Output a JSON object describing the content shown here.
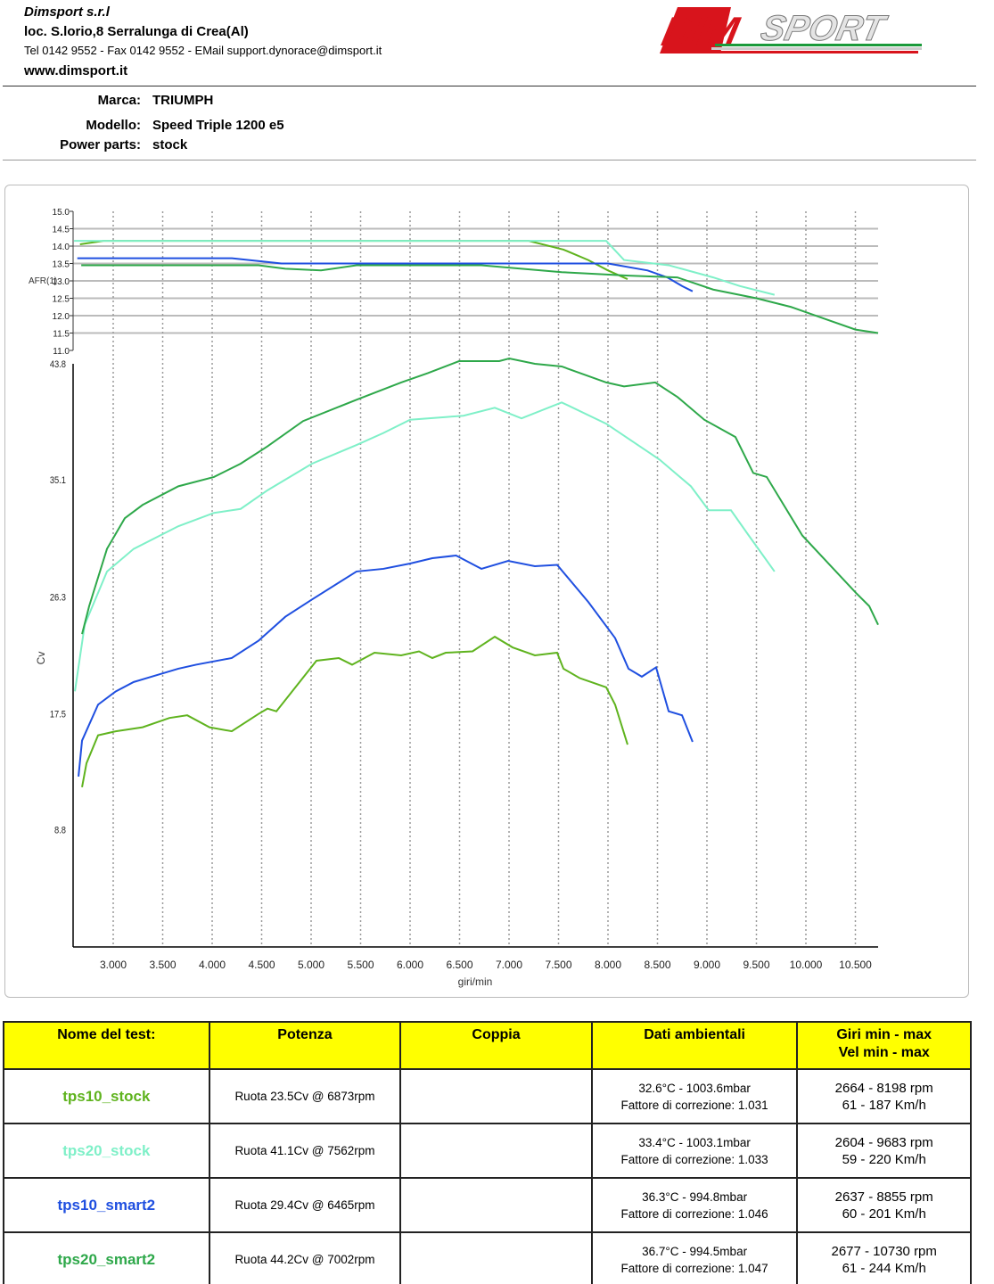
{
  "header": {
    "company": "Dimsport s.r.l",
    "address": "loc. S.lorio,8 Serralunga di Crea(Al)",
    "contacts": "Tel 0142 9552 - Fax 0142 9552 - EMail support.dynorace@dimsport.it",
    "website": "www.dimsport.it",
    "logo_text": "DIMSPORT"
  },
  "vehicle": {
    "brand_label": "Marca:",
    "brand": "TRIUMPH",
    "model_label": "Modello:",
    "model": "Speed Triple 1200 e5",
    "parts_label": "Power parts:",
    "parts": "stock"
  },
  "colors": {
    "tps10_stock": "#5fb31e",
    "tps20_stock": "#7ff0c8",
    "tps10_smart2": "#1f4fe0",
    "tps20_smart2": "#2ea84a"
  },
  "chart_data": {
    "type": "line",
    "xlabel": "giri/min",
    "xlim": [
      2595,
      10730
    ],
    "xticks": [
      3000,
      3500,
      4000,
      4500,
      5000,
      5500,
      6000,
      6500,
      7000,
      7500,
      8000,
      8500,
      9000,
      9500,
      10000,
      10500
    ],
    "xtick_labels": [
      "3.000",
      "3.500",
      "4.000",
      "4.500",
      "5.000",
      "5.500",
      "6.000",
      "6.500",
      "7.000",
      "7.500",
      "8.000",
      "8.500",
      "9.000",
      "9.500",
      "10.000",
      "10.500"
    ],
    "afr_axis": {
      "label": "AFR(1)",
      "ylim": [
        11.0,
        15.0
      ],
      "ticks": [
        "15.0",
        "14.5",
        "14.0",
        "13.5",
        "13.0",
        "12.5",
        "12.0",
        "11.5",
        "11.0"
      ],
      "grid": true
    },
    "power_axis": {
      "label": "Cv",
      "ylim": [
        0,
        43.8
      ],
      "ticks": [
        "43.8",
        "35.1",
        "26.3",
        "17.5",
        "8.8"
      ],
      "tick_values": [
        43.8,
        35.1,
        26.3,
        17.5,
        8.8
      ]
    },
    "series": [
      {
        "name": "tps10_stock",
        "color_key": "tps10_stock",
        "power": [
          [
            2685,
            12.0
          ],
          [
            2730,
            13.8
          ],
          [
            2847,
            15.9
          ],
          [
            3027,
            16.2
          ],
          [
            3297,
            16.5
          ],
          [
            3568,
            17.2
          ],
          [
            3748,
            17.4
          ],
          [
            3973,
            16.5
          ],
          [
            4198,
            16.2
          ],
          [
            4468,
            17.5
          ],
          [
            4559,
            17.9
          ],
          [
            4649,
            17.7
          ],
          [
            5054,
            21.5
          ],
          [
            5279,
            21.7
          ],
          [
            5414,
            21.2
          ],
          [
            5640,
            22.1
          ],
          [
            5910,
            21.9
          ],
          [
            6090,
            22.2
          ],
          [
            6225,
            21.7
          ],
          [
            6360,
            22.1
          ],
          [
            6631,
            22.2
          ],
          [
            6856,
            23.3
          ],
          [
            7036,
            22.5
          ],
          [
            7261,
            21.9
          ],
          [
            7486,
            22.1
          ],
          [
            7550,
            20.9
          ],
          [
            7712,
            20.2
          ],
          [
            7982,
            19.5
          ],
          [
            8072,
            18.2
          ],
          [
            8198,
            15.2
          ]
        ],
        "afr": [
          [
            2664,
            14.05
          ],
          [
            2900,
            14.15
          ],
          [
            7200,
            14.15
          ],
          [
            7550,
            13.9
          ],
          [
            7800,
            13.6
          ],
          [
            8000,
            13.3
          ],
          [
            8198,
            13.05
          ]
        ]
      },
      {
        "name": "tps20_stock",
        "color_key": "tps20_stock",
        "power": [
          [
            2613,
            19.2
          ],
          [
            2712,
            24.2
          ],
          [
            2937,
            28.2
          ],
          [
            3207,
            29.9
          ],
          [
            3658,
            31.6
          ],
          [
            4018,
            32.6
          ],
          [
            4288,
            32.9
          ],
          [
            4559,
            34.3
          ],
          [
            5009,
            36.3
          ],
          [
            5459,
            37.7
          ],
          [
            5730,
            38.6
          ],
          [
            6000,
            39.6
          ],
          [
            6360,
            39.8
          ],
          [
            6540,
            39.9
          ],
          [
            6856,
            40.5
          ],
          [
            7126,
            39.7
          ],
          [
            7532,
            40.9
          ],
          [
            7982,
            39.3
          ],
          [
            8522,
            36.6
          ],
          [
            8838,
            34.6
          ],
          [
            9018,
            32.8
          ],
          [
            9243,
            32.8
          ],
          [
            9423,
            30.9
          ],
          [
            9683,
            28.2
          ]
        ],
        "afr": [
          [
            2604,
            14.15
          ],
          [
            7982,
            14.15
          ],
          [
            8162,
            13.6
          ],
          [
            8613,
            13.45
          ],
          [
            9063,
            13.1
          ],
          [
            9333,
            12.85
          ],
          [
            9683,
            12.6
          ]
        ]
      },
      {
        "name": "tps10_smart2",
        "color_key": "tps10_smart2",
        "power": [
          [
            2649,
            12.8
          ],
          [
            2685,
            15.5
          ],
          [
            2847,
            18.2
          ],
          [
            3027,
            19.2
          ],
          [
            3207,
            19.9
          ],
          [
            3658,
            20.9
          ],
          [
            3838,
            21.2
          ],
          [
            4198,
            21.7
          ],
          [
            4468,
            23.0
          ],
          [
            4739,
            24.8
          ],
          [
            5009,
            26.1
          ],
          [
            5459,
            28.2
          ],
          [
            5730,
            28.4
          ],
          [
            6000,
            28.8
          ],
          [
            6225,
            29.2
          ],
          [
            6465,
            29.4
          ],
          [
            6721,
            28.4
          ],
          [
            6991,
            29.0
          ],
          [
            7261,
            28.6
          ],
          [
            7486,
            28.7
          ],
          [
            7802,
            25.9
          ],
          [
            8072,
            23.2
          ],
          [
            8207,
            20.9
          ],
          [
            8342,
            20.3
          ],
          [
            8486,
            21.0
          ],
          [
            8613,
            17.7
          ],
          [
            8748,
            17.4
          ],
          [
            8855,
            15.4
          ]
        ],
        "afr": [
          [
            2637,
            13.65
          ],
          [
            4200,
            13.65
          ],
          [
            4700,
            13.5
          ],
          [
            8000,
            13.5
          ],
          [
            8400,
            13.3
          ],
          [
            8600,
            13.1
          ],
          [
            8750,
            12.85
          ],
          [
            8855,
            12.7
          ]
        ]
      },
      {
        "name": "tps20_smart2",
        "color_key": "tps20_smart2",
        "power": [
          [
            2685,
            23.5
          ],
          [
            2757,
            25.6
          ],
          [
            2937,
            29.9
          ],
          [
            3117,
            32.2
          ],
          [
            3297,
            33.2
          ],
          [
            3658,
            34.6
          ],
          [
            4018,
            35.3
          ],
          [
            4288,
            36.3
          ],
          [
            4559,
            37.6
          ],
          [
            4919,
            39.5
          ],
          [
            5459,
            41.1
          ],
          [
            5910,
            42.4
          ],
          [
            6180,
            43.1
          ],
          [
            6495,
            44.0
          ],
          [
            6901,
            44.0
          ],
          [
            7002,
            44.2
          ],
          [
            7261,
            43.8
          ],
          [
            7532,
            43.6
          ],
          [
            7982,
            42.4
          ],
          [
            8162,
            42.1
          ],
          [
            8477,
            42.4
          ],
          [
            8703,
            41.3
          ],
          [
            8973,
            39.6
          ],
          [
            9288,
            38.3
          ],
          [
            9468,
            35.6
          ],
          [
            9604,
            35.3
          ],
          [
            9964,
            30.9
          ],
          [
            10505,
            26.6
          ],
          [
            10640,
            25.6
          ],
          [
            10730,
            24.2
          ]
        ],
        "afr": [
          [
            2677,
            13.45
          ],
          [
            4468,
            13.45
          ],
          [
            4739,
            13.35
          ],
          [
            5100,
            13.3
          ],
          [
            5459,
            13.45
          ],
          [
            6721,
            13.45
          ],
          [
            7532,
            13.25
          ],
          [
            8207,
            13.15
          ],
          [
            8700,
            13.1
          ],
          [
            9063,
            12.75
          ],
          [
            9500,
            12.5
          ],
          [
            9850,
            12.25
          ],
          [
            10200,
            11.9
          ],
          [
            10500,
            11.6
          ],
          [
            10730,
            11.5
          ]
        ]
      }
    ]
  },
  "table": {
    "headers": [
      "Nome del test:",
      "Potenza",
      "Coppia",
      "Dati ambientali",
      "Giri min - max",
      "Vel  min - max"
    ],
    "rows": [
      {
        "name": "tps10_stock",
        "power": "Ruota 23.5Cv @ 6873rpm",
        "torque": "",
        "env1": "32.6°C - 1003.6mbar",
        "env2": "Fattore di correzione: 1.031",
        "rpm": "2664 - 8198 rpm",
        "speed": "61 - 187 Km/h"
      },
      {
        "name": "tps20_stock",
        "power": "Ruota 41.1Cv @ 7562rpm",
        "torque": "",
        "env1": "33.4°C - 1003.1mbar",
        "env2": "Fattore di correzione: 1.033",
        "rpm": "2604 - 9683 rpm",
        "speed": "59 - 220 Km/h"
      },
      {
        "name": "tps10_smart2",
        "power": "Ruota 29.4Cv @ 6465rpm",
        "torque": "",
        "env1": "36.3°C - 994.8mbar",
        "env2": "Fattore di correzione: 1.046",
        "rpm": "2637 - 8855 rpm",
        "speed": "60 - 201 Km/h"
      },
      {
        "name": "tps20_smart2",
        "power": "Ruota 44.2Cv @ 7002rpm",
        "torque": "",
        "env1": "36.7°C - 994.5mbar",
        "env2": "Fattore di correzione: 1.047",
        "rpm": "2677 - 10730 rpm",
        "speed": "61 - 244 Km/h"
      }
    ]
  }
}
